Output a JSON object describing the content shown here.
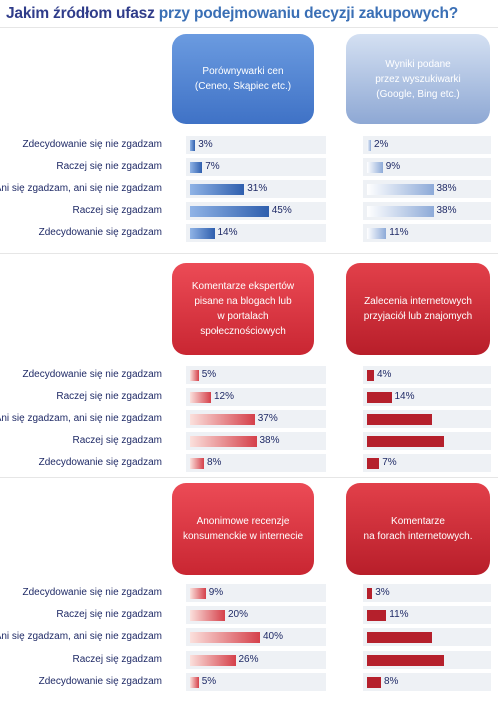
{
  "title_part1": "Jakim źródłom ufasz",
  "title_part2": "przy podejmowaniu decyzji zakupowych?",
  "row_labels": {
    "r1": "Zdecydowanie się nie zgadzam",
    "r2": "Raczej się nie zgadzam",
    "r3": "Ani się zgadzam, ani się nie zgadzam",
    "r4": "Raczej się zgadzam",
    "r5": "Zdecydowanie się zgadzam"
  },
  "colors": {
    "title": "#2f3c8a",
    "accent_blue": "#3f72c6",
    "accent_red": "#b5202c"
  },
  "chart_data": [
    {
      "type": "bar",
      "title": "Porównywarki cen (Ceneo, Skąpiec etc.)",
      "categories": [
        "Zdecydowanie się nie zgadzam",
        "Raczej się nie zgadzam",
        "Ani się zgadzam, ani się nie zgadzam",
        "Raczej się zgadzam",
        "Zdecydowanie się zgadzam"
      ],
      "values": [
        3,
        7,
        31,
        45,
        14
      ],
      "value_labels": [
        "3%",
        "7%",
        "31%",
        "45%",
        "14%"
      ],
      "orientation": "horizontal"
    },
    {
      "type": "bar",
      "title": "Wyniki podane przez wyszukiwarki (Google, Bing etc.)",
      "categories": [
        "Zdecydowanie się nie zgadzam",
        "Raczej się nie zgadzam",
        "Ani się zgadzam, ani się nie zgadzam",
        "Raczej się zgadzam",
        "Zdecydowanie się zgadzam"
      ],
      "values": [
        2,
        9,
        38,
        38,
        11
      ],
      "value_labels": [
        "2%",
        "9%",
        "38%",
        "38%",
        "11%"
      ],
      "orientation": "horizontal"
    },
    {
      "type": "bar",
      "title": "Komentarze ekspertów pisane na blogach lub w portalach społecznościowych",
      "categories": [
        "Zdecydowanie się nie zgadzam",
        "Raczej się nie zgadzam",
        "Ani się zgadzam, ani się nie zgadzam",
        "Raczej się zgadzam",
        "Zdecydowanie się zgadzam"
      ],
      "values": [
        5,
        12,
        37,
        38,
        8
      ],
      "value_labels": [
        "5%",
        "12%",
        "37%",
        "38%",
        "8%"
      ],
      "orientation": "horizontal"
    },
    {
      "type": "bar",
      "title": "Zalecenia internetowych przyjaciół lub znajomych",
      "categories": [
        "Zdecydowanie się nie zgadzam",
        "Raczej się nie zgadzam",
        "Ani się zgadzam, ani się nie zgadzam",
        "Raczej się zgadzam",
        "Zdecydowanie się zgadzam"
      ],
      "values": [
        4,
        14,
        37,
        44,
        7
      ],
      "value_labels": [
        "4%",
        "14%",
        "",
        "",
        "7%"
      ],
      "orientation": "horizontal"
    },
    {
      "type": "bar",
      "title": "Anonimowe recenzje konsumenckie w internecie",
      "categories": [
        "Zdecydowanie się nie zgadzam",
        "Raczej się nie zgadzam",
        "Ani się zgadzam, ani się nie zgadzam",
        "Raczej się zgadzam",
        "Zdecydowanie się zgadzam"
      ],
      "values": [
        9,
        20,
        40,
        26,
        5
      ],
      "value_labels": [
        "9%",
        "20%",
        "40%",
        "26%",
        "5%"
      ],
      "orientation": "horizontal"
    },
    {
      "type": "bar",
      "title": "Komentarze na forach internetowych.",
      "categories": [
        "Zdecydowanie się nie zgadzam",
        "Raczej się nie zgadzam",
        "Ani się zgadzam, ani się nie zgadzam",
        "Raczej się zgadzam",
        "Zdecydowanie się zgadzam"
      ],
      "values": [
        3,
        11,
        37,
        44,
        8
      ],
      "value_labels": [
        "3%",
        "11%",
        "",
        "",
        "8%"
      ],
      "orientation": "horizontal"
    }
  ],
  "headers": {
    "p1_l1": "Porównywarki cen",
    "p1_l2": "(Ceneo, Skąpiec etc.)",
    "p2_l1": "Wyniki podane",
    "p2_l2": "przez wyszukiwarki",
    "p2_l3": "(Google, Bing etc.)",
    "p3_l1": "Komentarze ekspertów",
    "p3_l2": "pisane na blogach lub",
    "p3_l3": "w portalach społecznościowych",
    "p4_l1": "Zalecenia internetowych",
    "p4_l2": "przyjaciół lub znajomych",
    "p5_l1": "Anonimowe recenzje",
    "p5_l2": "konsumenckie w internecie",
    "p6_l1": "Komentarze",
    "p6_l2": "na forach internetowych."
  }
}
